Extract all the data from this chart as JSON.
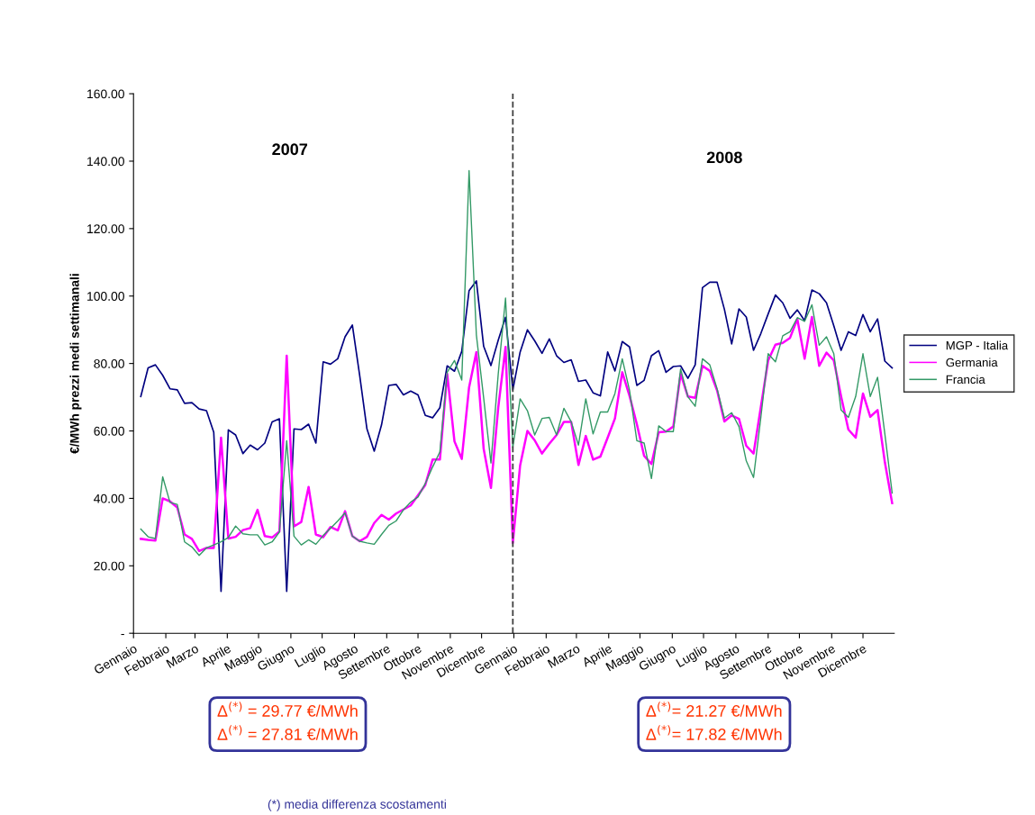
{
  "chart_data": {
    "type": "line",
    "ylabel": "€/MWh prezzi medi settimanali",
    "x": [
      "2007-01-08",
      "2007-01-15",
      "2007-01-22",
      "2007-01-29",
      "2007-02-05",
      "2007-02-12",
      "2007-02-19",
      "2007-02-26",
      "2007-03-05",
      "2007-03-12",
      "2007-03-19",
      "2007-03-26",
      "2007-04-02",
      "2007-04-09",
      "2007-04-16",
      "2007-04-23",
      "2007-04-30",
      "2007-05-07",
      "2007-05-14",
      "2007-05-21",
      "2007-05-28",
      "2007-06-04",
      "2007-06-11",
      "2007-06-18",
      "2007-06-25",
      "2007-07-02",
      "2007-07-09",
      "2007-07-16",
      "2007-07-23",
      "2007-07-30",
      "2007-08-06",
      "2007-08-13",
      "2007-08-20",
      "2007-08-27",
      "2007-09-03",
      "2007-09-10",
      "2007-09-17",
      "2007-09-24",
      "2007-10-01",
      "2007-10-08",
      "2007-10-15",
      "2007-10-22",
      "2007-10-29",
      "2007-11-05",
      "2007-11-12",
      "2007-11-19",
      "2007-11-26",
      "2007-12-03",
      "2007-12-10",
      "2007-12-17",
      "2007-12-24",
      "2007-12-31",
      "2008-01-07",
      "2008-01-14",
      "2008-01-21",
      "2008-01-28",
      "2008-02-04",
      "2008-02-11",
      "2008-02-18",
      "2008-02-25",
      "2008-03-03",
      "2008-03-10",
      "2008-03-17",
      "2008-03-24",
      "2008-03-31",
      "2008-04-07",
      "2008-04-14",
      "2008-04-21",
      "2008-04-28",
      "2008-05-05",
      "2008-05-12",
      "2008-05-19",
      "2008-05-26",
      "2008-06-02",
      "2008-06-09",
      "2008-06-16",
      "2008-06-23",
      "2008-06-30",
      "2008-07-07",
      "2008-07-14",
      "2008-07-21",
      "2008-07-28",
      "2008-08-04",
      "2008-08-11",
      "2008-08-18",
      "2008-08-25",
      "2008-09-01",
      "2008-09-08",
      "2008-09-15",
      "2008-09-22",
      "2008-09-29",
      "2008-10-06",
      "2008-10-13",
      "2008-10-20",
      "2008-10-27",
      "2008-11-03",
      "2008-11-10",
      "2008-11-17",
      "2008-11-24",
      "2008-12-01",
      "2008-12-08",
      "2008-12-15",
      "2008-12-22",
      "2008-12-29"
    ],
    "series": [
      {
        "name": "MGP - Italia",
        "color": "#000080",
        "values": [
          70.2,
          78.7,
          79.6,
          76.5,
          72.5,
          72.2,
          68.2,
          68.4,
          66.5,
          66.0,
          59.6,
          12.4,
          60.3,
          58.8,
          53.3,
          55.8,
          54.4,
          56.4,
          62.7,
          63.6,
          12.4,
          60.6,
          60.4,
          62.0,
          56.4,
          80.5,
          79.8,
          81.4,
          87.9,
          91.4,
          76.5,
          60.6,
          54.0,
          61.8,
          73.5,
          73.8,
          70.7,
          71.8,
          70.7,
          64.6,
          63.9,
          66.9,
          79.3,
          77.7,
          83.6,
          101.6,
          104.5,
          85.1,
          79.4,
          86.9,
          93.7,
          72.2,
          83.4,
          90.0,
          86.7,
          83.0,
          87.3,
          82.3,
          80.3,
          81.1,
          74.7,
          75.1,
          71.3,
          70.4,
          83.4,
          77.8,
          86.5,
          84.9,
          73.5,
          75.0,
          82.3,
          83.8,
          77.4,
          79.1,
          79.3,
          75.6,
          79.6,
          102.5,
          104.1,
          104.1,
          96.1,
          85.8,
          96.2,
          93.8,
          83.9,
          88.9,
          94.7,
          100.3,
          98.0,
          93.4,
          95.9,
          92.7,
          101.8,
          100.7,
          98.0,
          91.2,
          83.9,
          89.4,
          88.3,
          94.5,
          89.4,
          93.2,
          80.7,
          78.7
        ]
      },
      {
        "name": "Germania",
        "color": "#ff00ff",
        "values": [
          28.0,
          27.7,
          27.5,
          40.0,
          39.1,
          37.3,
          29.3,
          28.0,
          24.4,
          25.3,
          25.3,
          58.0,
          28.1,
          28.6,
          30.6,
          31.2,
          36.6,
          28.8,
          28.4,
          30.2,
          82.3,
          31.7,
          33.0,
          43.4,
          29.3,
          28.5,
          31.5,
          30.5,
          36.2,
          28.8,
          27.3,
          28.6,
          32.7,
          35.1,
          33.7,
          35.5,
          36.7,
          37.9,
          40.9,
          44.0,
          51.5,
          51.5,
          76.9,
          56.9,
          51.7,
          72.9,
          83.4,
          54.7,
          43.1,
          66.9,
          84.9,
          26.8,
          49.8,
          60.0,
          57.2,
          53.3,
          56.2,
          58.8,
          62.7,
          62.7,
          49.9,
          58.5,
          51.5,
          52.4,
          58.0,
          63.7,
          77.4,
          70.4,
          62.0,
          52.6,
          50.2,
          59.6,
          59.8,
          61.3,
          76.9,
          70.2,
          69.8,
          79.3,
          77.8,
          72.0,
          62.8,
          64.6,
          63.6,
          55.6,
          53.3,
          67.1,
          80.9,
          85.6,
          86.1,
          87.6,
          93.2,
          81.4,
          93.8,
          79.3,
          83.2,
          80.9,
          70.2,
          60.4,
          58.0,
          71.1,
          64.2,
          66.2,
          50.7,
          38.6
        ]
      },
      {
        "name": "Francia",
        "color": "#339966",
        "values": [
          30.9,
          28.6,
          28.1,
          46.4,
          38.8,
          38.2,
          27.1,
          25.6,
          23.1,
          25.3,
          26.2,
          27.1,
          28.4,
          31.8,
          29.5,
          29.2,
          29.2,
          26.2,
          27.1,
          30.0,
          57.1,
          28.8,
          26.2,
          27.7,
          26.4,
          29.0,
          31.1,
          33.3,
          35.7,
          28.8,
          27.3,
          26.8,
          26.4,
          29.3,
          32.0,
          33.3,
          36.6,
          38.9,
          40.4,
          44.4,
          49.3,
          53.8,
          77.4,
          80.9,
          75.1,
          137.2,
          88.5,
          69.8,
          50.5,
          76.9,
          99.4,
          55.1,
          69.5,
          66.0,
          58.8,
          63.7,
          64.0,
          58.8,
          66.7,
          62.7,
          55.8,
          69.5,
          59.1,
          65.6,
          65.6,
          71.1,
          81.4,
          72.0,
          57.1,
          56.4,
          45.9,
          61.5,
          59.8,
          59.8,
          78.4,
          70.1,
          67.3,
          81.4,
          79.6,
          72.5,
          63.8,
          65.4,
          61.3,
          51.1,
          46.2,
          64.0,
          82.9,
          80.5,
          88.2,
          89.4,
          93.6,
          92.5,
          97.4,
          85.4,
          87.9,
          82.9,
          66.2,
          64.0,
          70.2,
          82.9,
          70.2,
          75.9,
          59.1,
          41.6
        ]
      }
    ],
    "xlim": [
      "2007-01-01",
      "2008-12-31"
    ],
    "xticks": [
      {
        "value": "2007-01-01",
        "label": "Gennaio"
      },
      {
        "value": "2007-02-01",
        "label": "Febbraio"
      },
      {
        "value": "2007-03-01",
        "label": "Marzo"
      },
      {
        "value": "2007-04-01",
        "label": "Aprile"
      },
      {
        "value": "2007-05-01",
        "label": "Maggio"
      },
      {
        "value": "2007-06-01",
        "label": "Giugno"
      },
      {
        "value": "2007-07-01",
        "label": "Luglio"
      },
      {
        "value": "2007-08-01",
        "label": "Agosto"
      },
      {
        "value": "2007-09-01",
        "label": "Settembre"
      },
      {
        "value": "2007-10-01",
        "label": "Ottobre"
      },
      {
        "value": "2007-11-01",
        "label": "Novembre"
      },
      {
        "value": "2007-12-01",
        "label": "Dicembre"
      },
      {
        "value": "2008-01-01",
        "label": "Gennaio"
      },
      {
        "value": "2008-02-01",
        "label": "Febbraio"
      },
      {
        "value": "2008-03-01",
        "label": "Marzo"
      },
      {
        "value": "2008-04-01",
        "label": "Aprile"
      },
      {
        "value": "2008-05-01",
        "label": "Maggio"
      },
      {
        "value": "2008-06-01",
        "label": "Giugno"
      },
      {
        "value": "2008-07-01",
        "label": "Luglio"
      },
      {
        "value": "2008-08-01",
        "label": "Agosto"
      },
      {
        "value": "2008-09-01",
        "label": "Settembre"
      },
      {
        "value": "2008-10-01",
        "label": "Ottobre"
      },
      {
        "value": "2008-11-01",
        "label": "Novembre"
      },
      {
        "value": "2008-12-01",
        "label": "Dicembre"
      }
    ],
    "ylim": [
      0,
      160
    ],
    "yticks": [
      {
        "value": 0,
        "label": "-"
      },
      {
        "value": 20,
        "label": "20.00"
      },
      {
        "value": 40,
        "label": "40.00"
      },
      {
        "value": 60,
        "label": "60.00"
      },
      {
        "value": 80,
        "label": "80.00"
      },
      {
        "value": 100,
        "label": "100.00"
      },
      {
        "value": 120,
        "label": "120.00"
      },
      {
        "value": 140,
        "label": "140.00"
      },
      {
        "value": 160,
        "label": "160.00"
      }
    ],
    "ref_lines": [
      {
        "axis": "x",
        "value": "2007-12-31",
        "line_style": "dashed",
        "color": "#404040"
      }
    ],
    "annotations": [
      "2007",
      "2008",
      "Δ$^{(*)}$ = 29.77 €/MWh",
      "Δ$^{(*)}$ = 27.81 €/MWh",
      "Δ$^{(*)}$= 21.27 €/MWh",
      "Δ$^{(*)}$= 17.82 €/MWh",
      "(*) media differenza scostamenti"
    ],
    "legend": "right",
    "grid": false,
    "marker": "none",
    "line_style": "solid"
  }
}
